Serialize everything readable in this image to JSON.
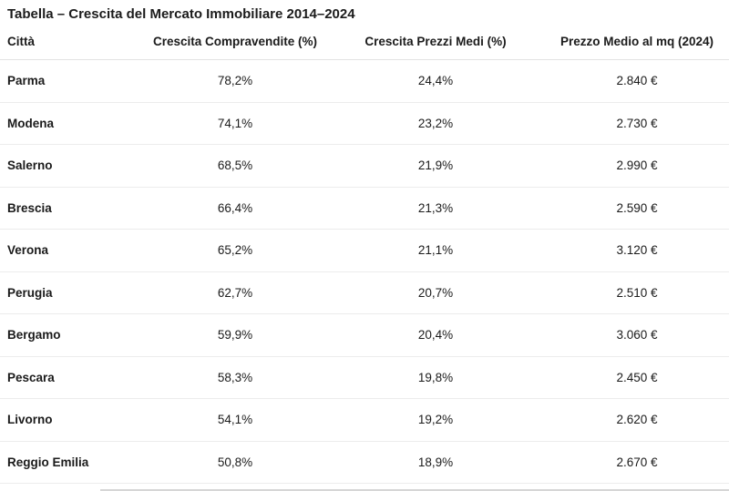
{
  "title": "Tabella – Crescita del Mercato Immobiliare 2014–2024",
  "colors": {
    "text": "#1b1b1b",
    "background": "#ffffff",
    "row_border": "#ececec",
    "header_border": "#e2e2e2"
  },
  "table": {
    "headers": [
      "Città",
      "Crescita Compravendite (%)",
      "Crescita Prezzi Medi (%)",
      "Prezzo Medio al mq (2024)"
    ],
    "rows": [
      [
        "Parma",
        "78,2%",
        "24,4%",
        "2.840 €"
      ],
      [
        "Modena",
        "74,1%",
        "23,2%",
        "2.730 €"
      ],
      [
        "Salerno",
        "68,5%",
        "21,9%",
        "2.990 €"
      ],
      [
        "Brescia",
        "66,4%",
        "21,3%",
        "2.590 €"
      ],
      [
        "Verona",
        "65,2%",
        "21,1%",
        "3.120 €"
      ],
      [
        "Perugia",
        "62,7%",
        "20,7%",
        "2.510 €"
      ],
      [
        "Bergamo",
        "59,9%",
        "20,4%",
        "3.060 €"
      ],
      [
        "Pescara",
        "58,3%",
        "19,8%",
        "2.450 €"
      ],
      [
        "Livorno",
        "54,1%",
        "19,2%",
        "2.620 €"
      ],
      [
        "Reggio Emilia",
        "50,8%",
        "18,9%",
        "2.670 €"
      ]
    ]
  },
  "chart_data": {
    "type": "table",
    "title": "Tabella – Crescita del Mercato Immobiliare 2014–2024",
    "columns": [
      "Città",
      "Crescita Compravendite (%)",
      "Crescita Prezzi Medi (%)",
      "Prezzo Medio al mq (2024)"
    ],
    "categories": [
      "Parma",
      "Modena",
      "Salerno",
      "Brescia",
      "Verona",
      "Perugia",
      "Bergamo",
      "Pescara",
      "Livorno",
      "Reggio Emilia"
    ],
    "series": [
      {
        "name": "Crescita Compravendite (%)",
        "values": [
          78.2,
          74.1,
          68.5,
          66.4,
          65.2,
          62.7,
          59.9,
          58.3,
          54.1,
          50.8
        ]
      },
      {
        "name": "Crescita Prezzi Medi (%)",
        "values": [
          24.4,
          23.2,
          21.9,
          21.3,
          21.1,
          20.7,
          20.4,
          19.8,
          19.2,
          18.9
        ]
      },
      {
        "name": "Prezzo Medio al mq (2024) EUR",
        "values": [
          2840,
          2730,
          2990,
          2590,
          3120,
          2510,
          3060,
          2450,
          2620,
          2670
        ]
      }
    ]
  }
}
